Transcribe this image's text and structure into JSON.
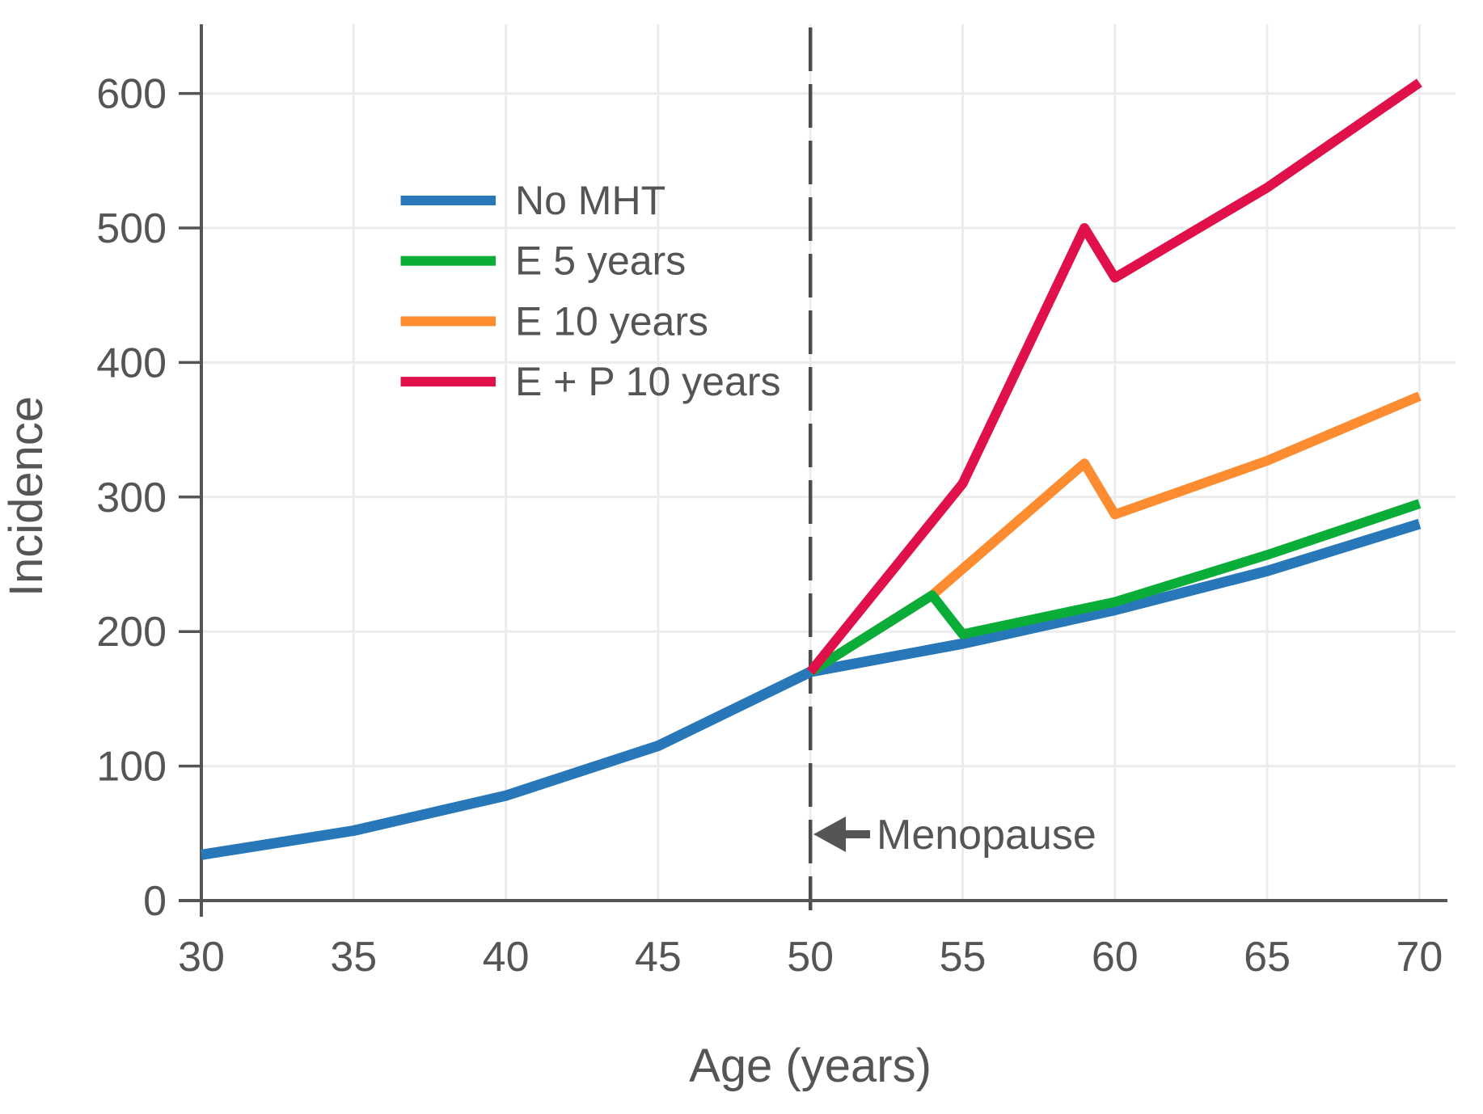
{
  "chart_data": {
    "type": "line",
    "xlabel": "Age (years)",
    "ylabel": "Incidence",
    "xlim": [
      30,
      70
    ],
    "ylim": [
      0,
      650
    ],
    "x_ticks": [
      30,
      35,
      40,
      45,
      50,
      55,
      60,
      65,
      70
    ],
    "y_ticks": [
      0,
      100,
      200,
      300,
      400,
      500,
      600
    ],
    "grid": true,
    "legend_position": "upper-left-inside",
    "draw_order": [
      0,
      2,
      1,
      3
    ],
    "series": [
      {
        "name": "No MHT",
        "color": "#2878b9",
        "points": [
          [
            30,
            34
          ],
          [
            35,
            52
          ],
          [
            40,
            78
          ],
          [
            45,
            115
          ],
          [
            50,
            170
          ],
          [
            55,
            191
          ],
          [
            60,
            216
          ],
          [
            65,
            245
          ],
          [
            70,
            280
          ]
        ]
      },
      {
        "name": "E 5 years",
        "color": "#0aad38",
        "points": [
          [
            50,
            170
          ],
          [
            54,
            227
          ],
          [
            55,
            198
          ],
          [
            60,
            222
          ],
          [
            65,
            257
          ],
          [
            70,
            295
          ]
        ]
      },
      {
        "name": "E 10 years",
        "color": "#fd8c30",
        "points": [
          [
            50,
            170
          ],
          [
            54,
            227
          ],
          [
            59,
            325
          ],
          [
            60,
            287
          ],
          [
            65,
            327
          ],
          [
            70,
            375
          ]
        ]
      },
      {
        "name": "E + P 10 years",
        "color": "#e0114a",
        "points": [
          [
            50,
            170
          ],
          [
            55,
            310
          ],
          [
            59,
            500
          ],
          [
            60,
            463
          ],
          [
            65,
            530
          ],
          [
            70,
            608
          ]
        ]
      }
    ],
    "annotation": {
      "text": "Menopause",
      "arrow_direction": "left",
      "at_age": 50,
      "at_value": 48
    },
    "reference_line": {
      "axis": "x",
      "value": 50,
      "style": "dashed",
      "color": "#4d4d4d"
    },
    "colors": {
      "axis": "#555555",
      "grid": "#ececec",
      "tick_text": "#555555"
    }
  }
}
